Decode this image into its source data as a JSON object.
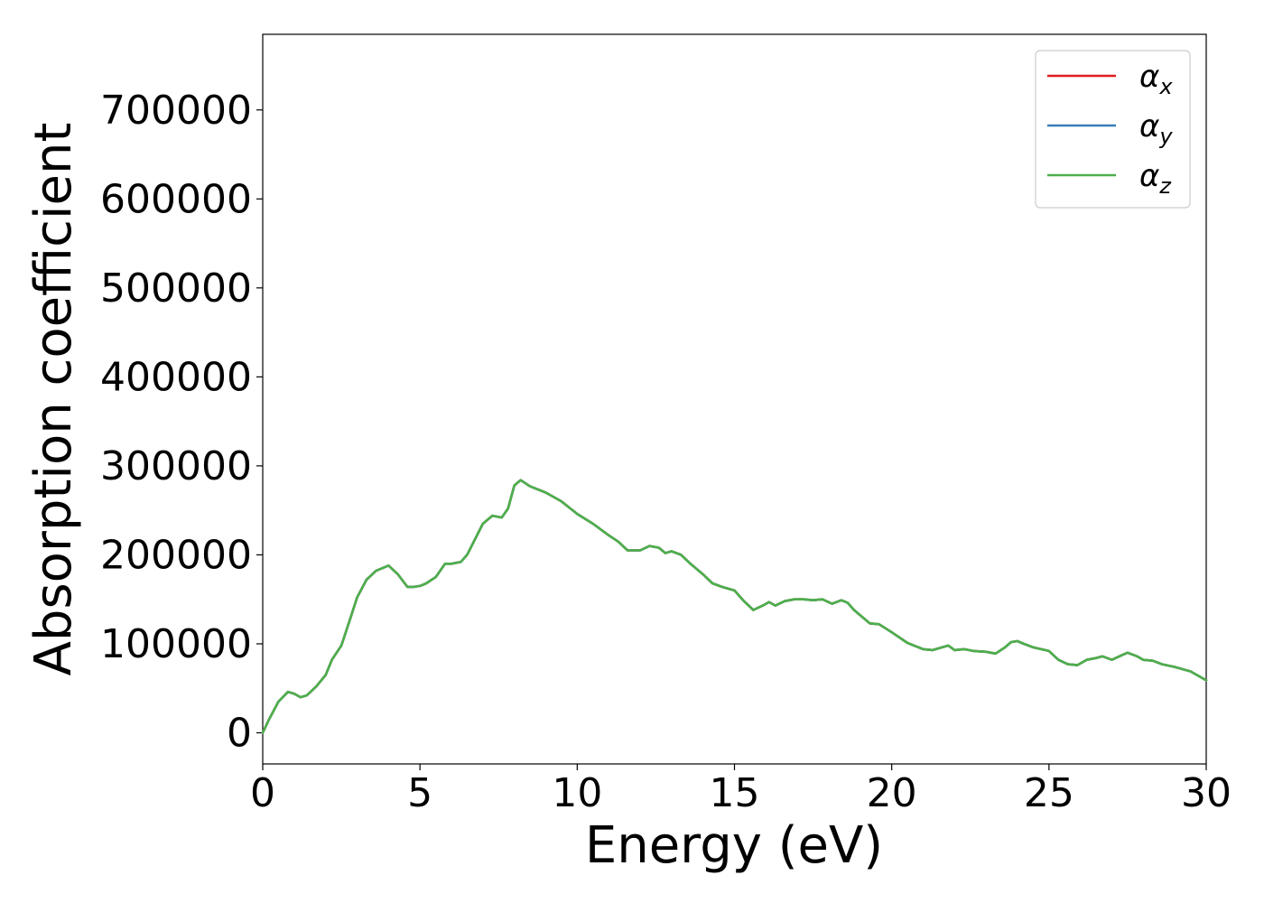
{
  "chart_data": {
    "type": "line",
    "xlabel": "Energy (eV)",
    "ylabel": "Absorption coefficient",
    "xlim": [
      0,
      30
    ],
    "ylim": [
      -35000,
      785000
    ],
    "xticks": [
      0,
      5,
      10,
      15,
      20,
      25,
      30
    ],
    "yticks": [
      0,
      100000,
      200000,
      300000,
      400000,
      500000,
      600000,
      700000
    ],
    "grid": false,
    "legend_position": "top-right",
    "x": [
      0,
      0.2,
      0.5,
      0.8,
      1.0,
      1.2,
      1.4,
      1.7,
      2.0,
      2.2,
      2.5,
      2.8,
      3.0,
      3.3,
      3.6,
      4.0,
      4.3,
      4.6,
      4.8,
      5.0,
      5.2,
      5.5,
      5.8,
      6.0,
      6.3,
      6.5,
      7.0,
      7.3,
      7.6,
      7.8,
      8.0,
      8.2,
      8.5,
      9.0,
      9.5,
      10.0,
      10.5,
      11.0,
      11.3,
      11.6,
      12.0,
      12.3,
      12.6,
      12.8,
      13.0,
      13.3,
      13.6,
      14.0,
      14.3,
      14.6,
      15.0,
      15.3,
      15.6,
      15.9,
      16.1,
      16.3,
      16.6,
      16.9,
      17.2,
      17.5,
      17.8,
      18.1,
      18.4,
      18.6,
      18.8,
      19.0,
      19.3,
      19.6,
      20.0,
      20.5,
      21.0,
      21.3,
      21.6,
      21.8,
      22.0,
      22.3,
      22.6,
      23.0,
      23.3,
      23.6,
      23.8,
      24.0,
      24.2,
      24.5,
      25.0,
      25.3,
      25.6,
      25.9,
      26.2,
      26.5,
      26.7,
      27.0,
      27.3,
      27.5,
      27.8,
      28.0,
      28.3,
      28.6,
      29.0,
      29.5,
      30.0
    ],
    "series": [
      {
        "name": "αx",
        "color": "#e41a1c",
        "values": [
          0,
          15000,
          35000,
          46000,
          44000,
          40000,
          42000,
          52000,
          65000,
          82000,
          98000,
          130000,
          152000,
          172000,
          182000,
          188000,
          178000,
          164000,
          164000,
          165000,
          168000,
          175000,
          190000,
          190000,
          192000,
          200000,
          235000,
          244000,
          242000,
          252000,
          278000,
          284000,
          277000,
          270000,
          260000,
          246000,
          235000,
          222000,
          215000,
          205000,
          205000,
          210000,
          208000,
          202000,
          204000,
          200000,
          190000,
          178000,
          168000,
          164000,
          160000,
          148000,
          138000,
          143000,
          147000,
          143000,
          148000,
          150000,
          150000,
          149000,
          150000,
          145000,
          149000,
          146000,
          138000,
          132000,
          123000,
          122000,
          113000,
          101000,
          94000,
          93000,
          96000,
          98000,
          93000,
          94000,
          92000,
          91000,
          89000,
          96000,
          102000,
          103000,
          100000,
          96000,
          92000,
          82000,
          77000,
          76000,
          82000,
          84000,
          86000,
          82000,
          87000,
          90000,
          86000,
          82000,
          81000,
          77000,
          74000,
          69000,
          59000
        ]
      },
      {
        "name": "αy",
        "color": "#377eb8",
        "values": [
          0,
          15000,
          35000,
          46000,
          44000,
          40000,
          42000,
          52000,
          65000,
          82000,
          98000,
          130000,
          152000,
          172000,
          182000,
          188000,
          178000,
          164000,
          164000,
          165000,
          168000,
          175000,
          190000,
          190000,
          192000,
          200000,
          235000,
          244000,
          242000,
          252000,
          278000,
          284000,
          277000,
          270000,
          260000,
          246000,
          235000,
          222000,
          215000,
          205000,
          205000,
          210000,
          208000,
          202000,
          204000,
          200000,
          190000,
          178000,
          168000,
          164000,
          160000,
          148000,
          138000,
          143000,
          147000,
          143000,
          148000,
          150000,
          150000,
          149000,
          150000,
          145000,
          149000,
          146000,
          138000,
          132000,
          123000,
          122000,
          113000,
          101000,
          94000,
          93000,
          96000,
          98000,
          93000,
          94000,
          92000,
          91000,
          89000,
          96000,
          102000,
          103000,
          100000,
          96000,
          92000,
          82000,
          77000,
          76000,
          82000,
          84000,
          86000,
          82000,
          87000,
          90000,
          86000,
          82000,
          81000,
          77000,
          74000,
          69000,
          59000
        ]
      },
      {
        "name": "αz",
        "color": "#4daf4a",
        "values": [
          0,
          15000,
          35000,
          46000,
          44000,
          40000,
          42000,
          52000,
          65000,
          82000,
          98000,
          130000,
          152000,
          172000,
          182000,
          188000,
          178000,
          164000,
          164000,
          165000,
          168000,
          175000,
          190000,
          190000,
          192000,
          200000,
          235000,
          244000,
          242000,
          252000,
          278000,
          284000,
          277000,
          270000,
          260000,
          246000,
          235000,
          222000,
          215000,
          205000,
          205000,
          210000,
          208000,
          202000,
          204000,
          200000,
          190000,
          178000,
          168000,
          164000,
          160000,
          148000,
          138000,
          143000,
          147000,
          143000,
          148000,
          150000,
          150000,
          149000,
          150000,
          145000,
          149000,
          146000,
          138000,
          132000,
          123000,
          122000,
          113000,
          101000,
          94000,
          93000,
          96000,
          98000,
          93000,
          94000,
          92000,
          91000,
          89000,
          96000,
          102000,
          103000,
          100000,
          96000,
          92000,
          82000,
          77000,
          76000,
          82000,
          84000,
          86000,
          82000,
          87000,
          90000,
          86000,
          82000,
          81000,
          77000,
          74000,
          69000,
          59000
        ]
      }
    ],
    "legend": {
      "entries": [
        {
          "symbol": "α",
          "sub": "x",
          "color": "#e41a1c"
        },
        {
          "symbol": "α",
          "sub": "y",
          "color": "#377eb8"
        },
        {
          "symbol": "α",
          "sub": "z",
          "color": "#4daf4a"
        }
      ]
    }
  }
}
